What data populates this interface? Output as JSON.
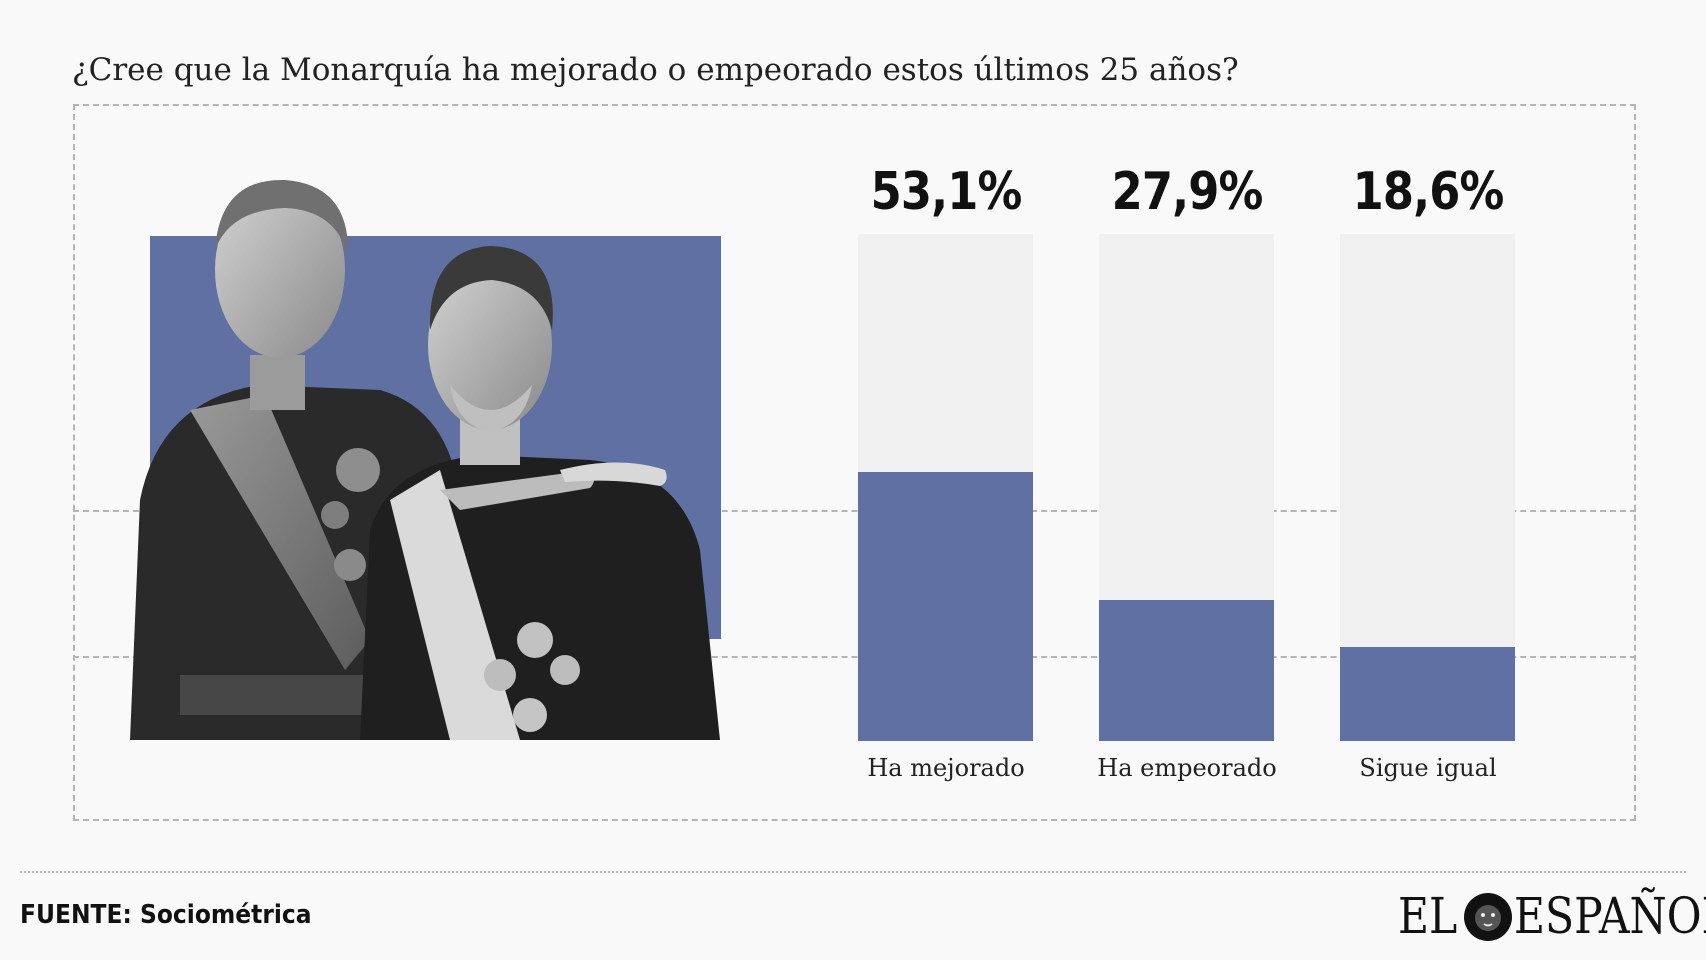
{
  "title": "¿Cree que la Monarquía ha mejorado o empeorado estos últimos 25 años?",
  "colors": {
    "bar": "#6070a2",
    "track": "#f0f0f0",
    "background": "#f9f9f9"
  },
  "chart_data": {
    "type": "bar",
    "categories": [
      "Ha mejorado",
      "Ha empeorado",
      "Sigue igual"
    ],
    "values": [
      53.1,
      27.9,
      18.6
    ],
    "value_labels": [
      "53,1%",
      "27,9%",
      "18,6%"
    ],
    "ylim": [
      0,
      100
    ],
    "title": "¿Cree que la Monarquía ha mejorado o empeorado estos últimos 25 años?",
    "xlabel": "",
    "ylabel": "",
    "grid": true,
    "legend": "none"
  },
  "image": {
    "subject": "portrait-photo-two-men-in-military-uniform"
  },
  "footer": {
    "source": "FUENTE: Sociométrica",
    "logo_left": "EL",
    "logo_right": "ESPAÑOL",
    "logo_icon": "lion-head-icon"
  }
}
